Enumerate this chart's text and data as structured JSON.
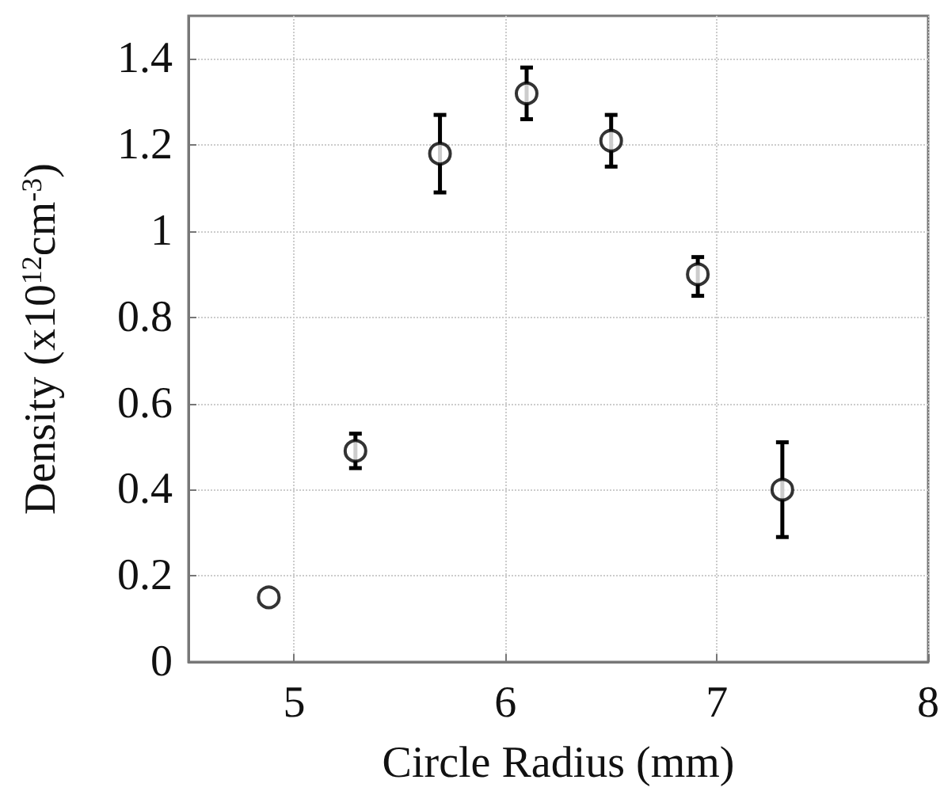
{
  "chart_data": {
    "type": "scatter",
    "xlabel": "Circle Radius (mm)",
    "ylabel": "Density (x10$^{12}$cm$^{-3}$)",
    "x": [
      4.88,
      5.29,
      5.69,
      6.1,
      6.5,
      6.91,
      7.31
    ],
    "series": [
      {
        "color": "#000000",
        "values": [
          0.15,
          0.49,
          1.18,
          1.32,
          1.21,
          0.9,
          0.4
        ],
        "errors": [
          null,
          [
            0.45,
            0.53
          ],
          [
            1.09,
            1.27
          ],
          [
            1.26,
            1.38
          ],
          [
            1.15,
            1.27
          ],
          [
            0.85,
            0.94
          ],
          [
            0.29,
            0.51
          ]
        ]
      }
    ],
    "xlim": [
      4.5,
      8
    ],
    "xticks": [
      5,
      6,
      7,
      8
    ],
    "ylim": [
      0,
      1.5
    ],
    "yticks": [
      0,
      0.2,
      0.4,
      0.6,
      0.8,
      1,
      1.2,
      1.4
    ],
    "grid": true,
    "marker": "circle"
  }
}
